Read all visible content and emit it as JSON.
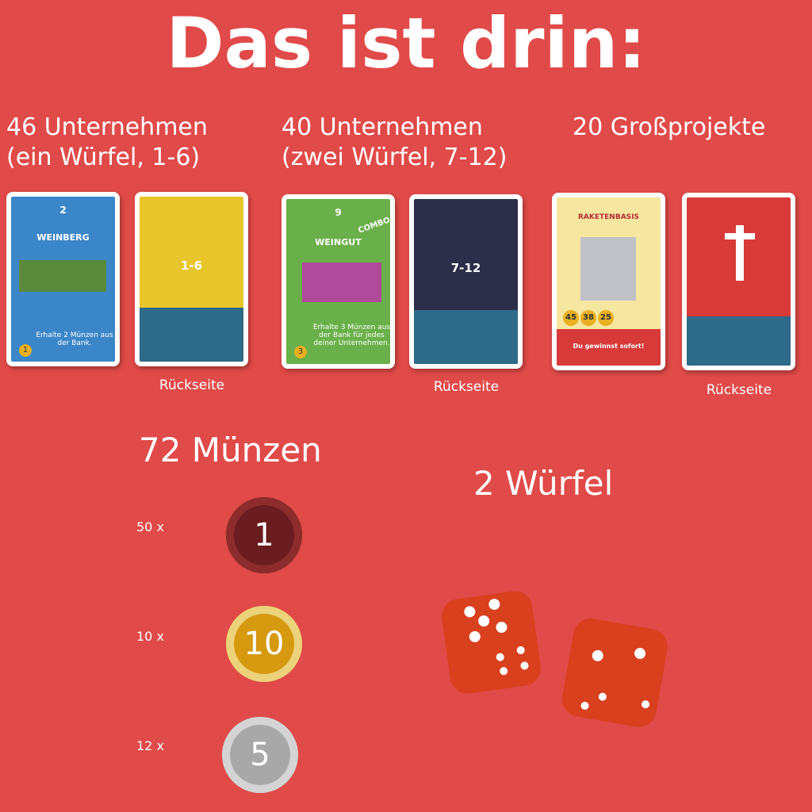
{
  "header": {
    "title": "Das ist drin:"
  },
  "sections": [
    {
      "heading": [
        "46 Unternehmen",
        "(ein Würfel, 1-6)"
      ],
      "front": {
        "number": "2",
        "name": "WEINBERG",
        "text": "Erhalte 2 Münzen aus der Bank.",
        "cost": "1"
      },
      "back": {
        "label": "1-6",
        "caption": "Rückseite"
      }
    },
    {
      "heading": [
        "40 Unternehmen",
        "(zwei Würfel, 7-12)"
      ],
      "front": {
        "number": "9",
        "badge": "COMBO",
        "name": "WEINGUT",
        "text": "Erhalte 3 Münzen aus der Bank für jedes deiner Unternehmen.",
        "cost": "3"
      },
      "back": {
        "label": "7-12",
        "caption": "Rückseite"
      }
    },
    {
      "heading": [
        "20 Großprojekte"
      ],
      "front": {
        "name": "RAKETENBASIS",
        "prices": [
          "45",
          "38",
          "25"
        ],
        "text": "Du gewinnst sofort!"
      },
      "back": {
        "caption": "Rückseite"
      }
    }
  ],
  "coins": {
    "heading": "72 Münzen",
    "items": [
      {
        "count": "50 x",
        "value": "1"
      },
      {
        "count": "10 x",
        "value": "10"
      },
      {
        "count": "12 x",
        "value": "5"
      }
    ]
  },
  "dice": {
    "heading": "2 Würfel"
  }
}
